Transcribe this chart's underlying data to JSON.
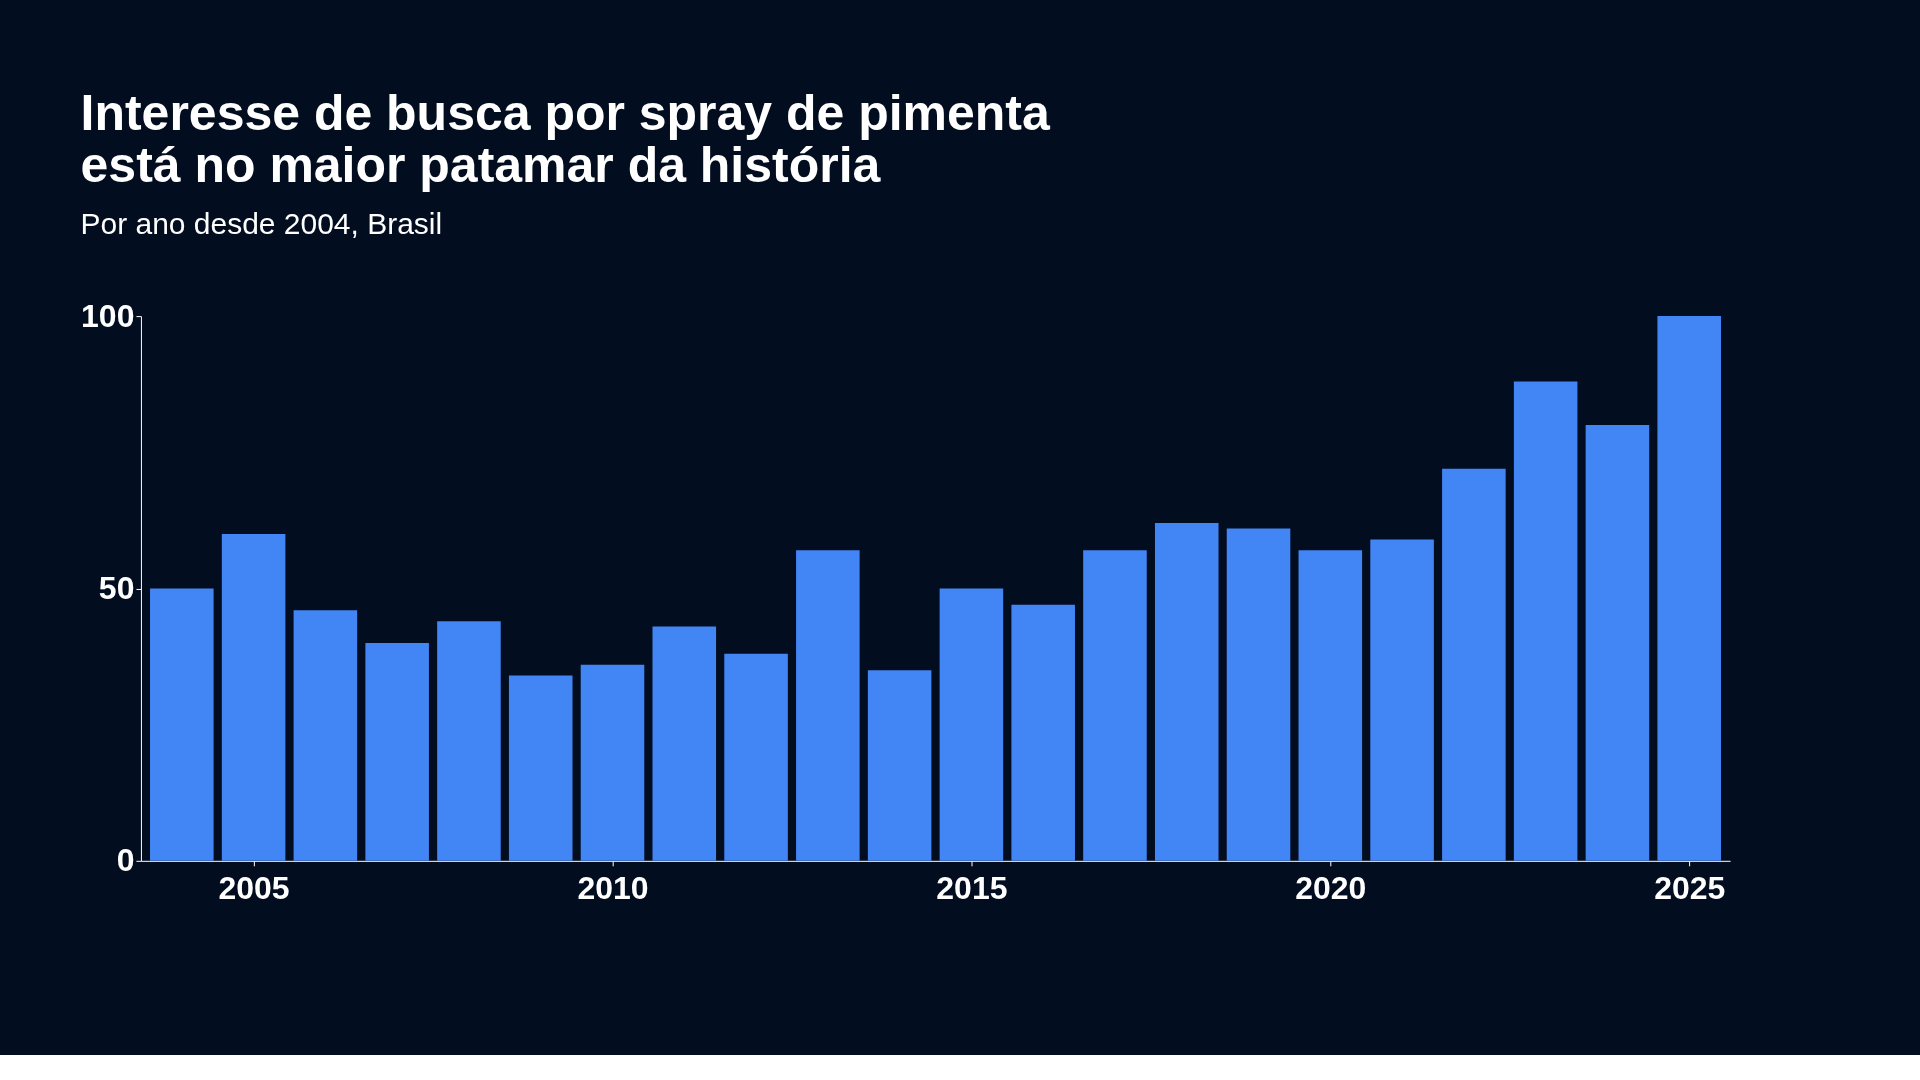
{
  "chart_data": {
    "type": "bar",
    "title": [
      "Interesse de busca por spray de pimenta",
      "está no maior patamar da história"
    ],
    "subtitle": "Por ano desde 2004, Brasil",
    "x": [
      2004,
      2005,
      2006,
      2007,
      2008,
      2009,
      2010,
      2011,
      2012,
      2013,
      2014,
      2015,
      2016,
      2017,
      2018,
      2019,
      2020,
      2021,
      2022,
      2023,
      2024,
      2025
    ],
    "values": [
      50,
      60,
      46,
      40,
      44,
      34,
      36,
      43,
      38,
      57,
      35,
      50,
      47,
      57,
      62,
      61,
      57,
      59,
      72,
      88,
      80,
      100
    ],
    "color": "#4285f4",
    "xlim": [
      2003.5,
      2025.5
    ],
    "xticks": [
      2005,
      2010,
      2015,
      2020,
      2025
    ],
    "ylim": [
      0,
      100
    ],
    "yticks": [
      0,
      50,
      100
    ],
    "grid": false
  }
}
